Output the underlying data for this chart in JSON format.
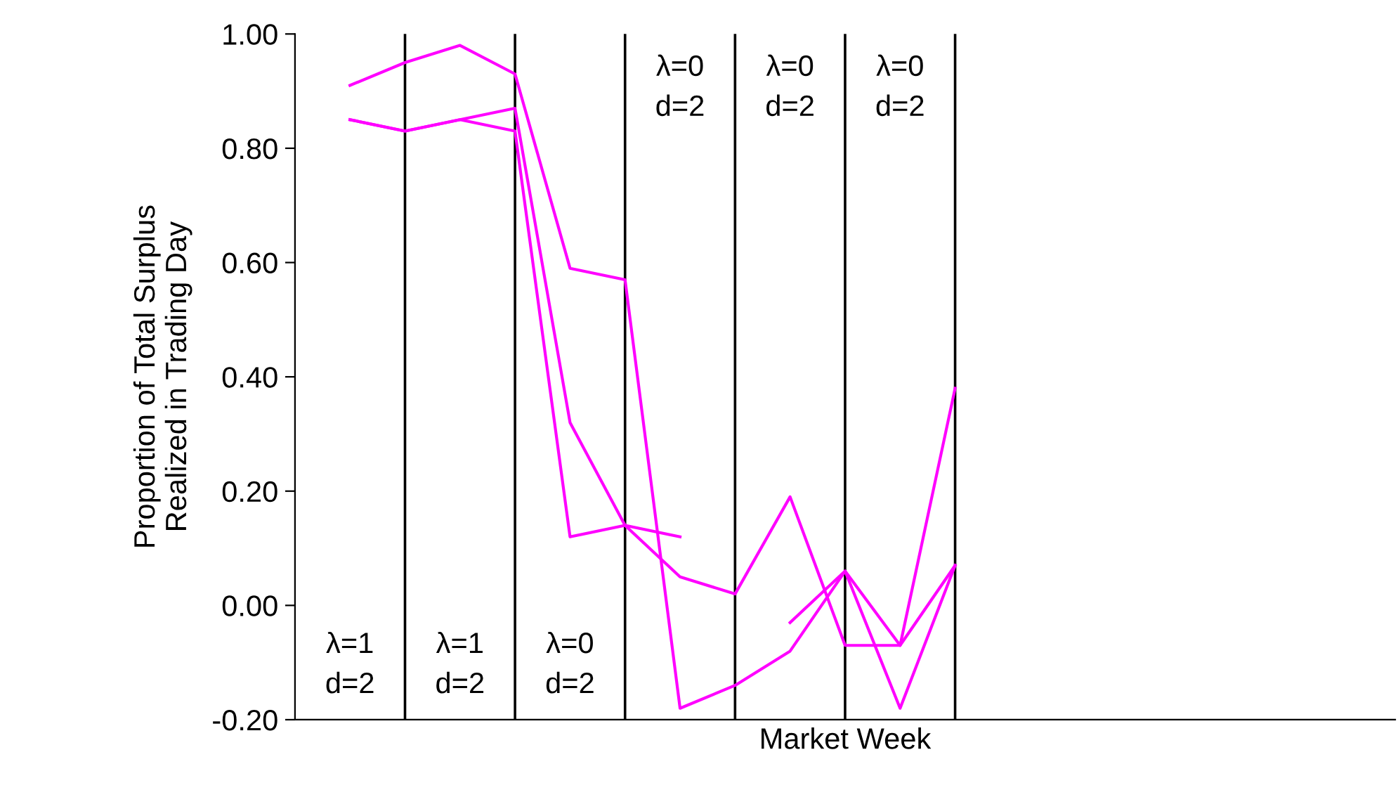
{
  "chart_data": {
    "type": "line",
    "xlabel": "Market Week",
    "ylabel": "Proportion of Total Surplus\nRealized in Trading Day",
    "categories": [
      null,
      null,
      null,
      null,
      null,
      null,
      null,
      null,
      null,
      null,
      null,
      null,
      null,
      null,
      null,
      null,
      null,
      null,
      null,
      null
    ],
    "tick_labels": "y",
    "ylim": [
      -0.2,
      1.0
    ],
    "yticks": [
      {
        "value": -0.2,
        "label": "-0.20"
      },
      {
        "value": 0,
        "label": "0.00"
      },
      {
        "value": 0.2,
        "label": "0.20"
      },
      {
        "value": 0.4,
        "label": "0.40"
      },
      {
        "value": 0.6,
        "label": "0.60"
      },
      {
        "value": 0.8,
        "label": "0.80"
      },
      {
        "value": 1.0,
        "label": "1.00"
      }
    ],
    "series": [
      {
        "color": "#ff00ff",
        "values": [
          0.91,
          0.95,
          0.98,
          0.93,
          0.59,
          0.57,
          -0.18,
          -0.14,
          -0.08,
          0.06,
          -0.18,
          0.07,
          null,
          null,
          null,
          null,
          null,
          null,
          null,
          null
        ]
      },
      {
        "color": "#ff00ff",
        "values": [
          0.85,
          0.83,
          0.85,
          0.87,
          0.32,
          0.14,
          0.12,
          null,
          -0.03,
          0.06,
          -0.07,
          0.07,
          null,
          null,
          null,
          null,
          null,
          null,
          null,
          null
        ]
      },
      {
        "color": "#ff00ff",
        "values": [
          0.85,
          0.83,
          0.85,
          0.83,
          0.12,
          0.14,
          0.05,
          0.02,
          0.19,
          -0.07,
          -0.07,
          0.38,
          null,
          null,
          null,
          null,
          null,
          null,
          null,
          null
        ]
      }
    ],
    "annotations": [
      "λ=1\nd=2",
      "λ=1\nd=2",
      "λ=0\nd=2",
      "λ=0\nd=2",
      "λ=0\nd=2",
      "λ=0\nd=2"
    ],
    "grid": "x",
    "legend": false,
    "marker": "none",
    "line_style": "solid"
  }
}
